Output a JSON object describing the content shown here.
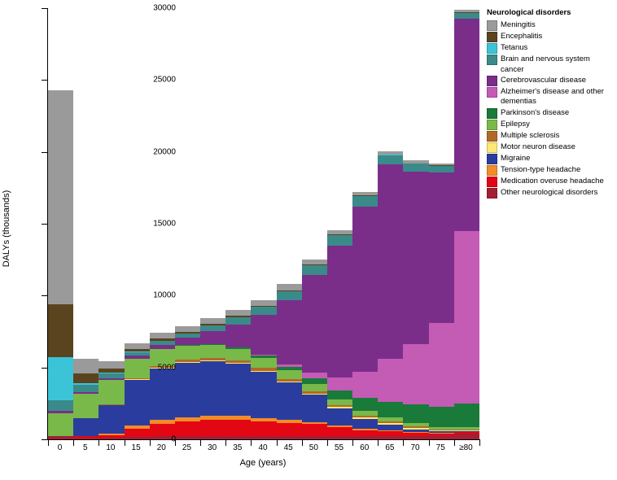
{
  "chart": {
    "type": "stacked-bar",
    "title": "",
    "xlabel": "Age (years)",
    "ylabel": "DALYs (thousands)",
    "xlim": [
      0,
      18
    ],
    "ylim": [
      0,
      30000
    ],
    "ytick_step": 5000,
    "yticks": [
      0,
      5000,
      10000,
      15000,
      20000,
      25000,
      30000
    ],
    "ytick_labels": [
      "0",
      "5000",
      "10000",
      "15000",
      "20000",
      "25000",
      "30000"
    ],
    "categories": [
      "0",
      "5",
      "10",
      "15",
      "20",
      "25",
      "30",
      "35",
      "40",
      "45",
      "50",
      "55",
      "60",
      "65",
      "70",
      "75",
      "≥80"
    ],
    "bar_width": 1.0,
    "background_color": "#ffffff",
    "legend_title": "Neurological disorders",
    "series": [
      {
        "key": "other",
        "label": "Other neurological disorders",
        "color": "#a31f34"
      },
      {
        "key": "medov",
        "label": "Medication overuse headache",
        "color": "#e30613"
      },
      {
        "key": "tension",
        "label": "Tension-type headache",
        "color": "#f28c28"
      },
      {
        "key": "migraine",
        "label": "Migraine",
        "color": "#2a3d9e"
      },
      {
        "key": "motor",
        "label": "Motor neuron disease",
        "color": "#ffe873"
      },
      {
        "key": "ms",
        "label": "Multiple sclerosis",
        "color": "#b06a28"
      },
      {
        "key": "epilepsy",
        "label": "Epilepsy",
        "color": "#79b94a"
      },
      {
        "key": "parkinson",
        "label": "Parkinson's disease",
        "color": "#1a7a3a"
      },
      {
        "key": "alzheimer",
        "label": "Alzheimer's disease and other dementias",
        "color": "#c45bb5"
      },
      {
        "key": "cerebro",
        "label": "Cerebrovascular disease",
        "color": "#7a2e8a"
      },
      {
        "key": "brain",
        "label": "Brain and nervous system cancer",
        "color": "#3a8a8a"
      },
      {
        "key": "tetanus",
        "label": "Tetanus",
        "color": "#3bc4d8"
      },
      {
        "key": "enceph",
        "label": "Encephalitis",
        "color": "#5a4420"
      },
      {
        "key": "meningitis",
        "label": "Meningitis",
        "color": "#9a9a9a"
      }
    ],
    "data": {
      "other": [
        200,
        100,
        100,
        150,
        200,
        250,
        250,
        250,
        250,
        250,
        250,
        250,
        250,
        250,
        250,
        250,
        400
      ],
      "medov": [
        0,
        100,
        200,
        600,
        900,
        1000,
        1100,
        1100,
        1000,
        900,
        800,
        600,
        400,
        300,
        200,
        150,
        100
      ],
      "tension": [
        0,
        50,
        100,
        200,
        250,
        300,
        300,
        300,
        250,
        200,
        150,
        100,
        80,
        60,
        50,
        40,
        30
      ],
      "migraine": [
        0,
        1200,
        2000,
        3200,
        3600,
        3800,
        3800,
        3600,
        3200,
        2600,
        1900,
        1200,
        700,
        400,
        200,
        100,
        50
      ],
      "motor": [
        0,
        0,
        0,
        20,
        30,
        40,
        50,
        60,
        70,
        80,
        90,
        100,
        110,
        120,
        100,
        80,
        60
      ],
      "ms": [
        0,
        0,
        20,
        60,
        100,
        150,
        180,
        200,
        200,
        180,
        160,
        140,
        120,
        100,
        80,
        60,
        40
      ],
      "epilepsy": [
        1600,
        1700,
        1700,
        1400,
        1200,
        1000,
        900,
        800,
        700,
        600,
        500,
        400,
        350,
        300,
        250,
        200,
        200
      ],
      "parkinson": [
        0,
        0,
        0,
        0,
        10,
        20,
        40,
        80,
        150,
        250,
        400,
        600,
        900,
        1100,
        1300,
        1400,
        1600
      ],
      "alzheimer": [
        0,
        0,
        0,
        0,
        0,
        0,
        0,
        20,
        50,
        150,
        400,
        900,
        1800,
        3000,
        4200,
        5800,
        12000
      ],
      "cerebro": [
        200,
        150,
        150,
        200,
        300,
        500,
        900,
        1600,
        2800,
        4500,
        6800,
        9200,
        11500,
        13500,
        12000,
        10500,
        14800
      ],
      "brain": [
        700,
        500,
        300,
        250,
        250,
        300,
        400,
        500,
        550,
        600,
        650,
        700,
        700,
        650,
        550,
        450,
        400
      ],
      "tetanus": [
        3000,
        100,
        50,
        20,
        10,
        10,
        10,
        10,
        10,
        10,
        10,
        10,
        10,
        10,
        10,
        10,
        10
      ],
      "enceph": [
        3700,
        700,
        300,
        200,
        150,
        120,
        100,
        90,
        80,
        70,
        60,
        50,
        40,
        30,
        25,
        20,
        20
      ],
      "meningitis": [
        14900,
        1000,
        500,
        400,
        400,
        400,
        400,
        400,
        400,
        400,
        350,
        300,
        250,
        200,
        180,
        160,
        200
      ]
    },
    "legend_order": [
      "meningitis",
      "enceph",
      "tetanus",
      "brain",
      "cerebro",
      "alzheimer",
      "parkinson",
      "epilepsy",
      "ms",
      "motor",
      "migraine",
      "tension",
      "medov",
      "other"
    ]
  }
}
